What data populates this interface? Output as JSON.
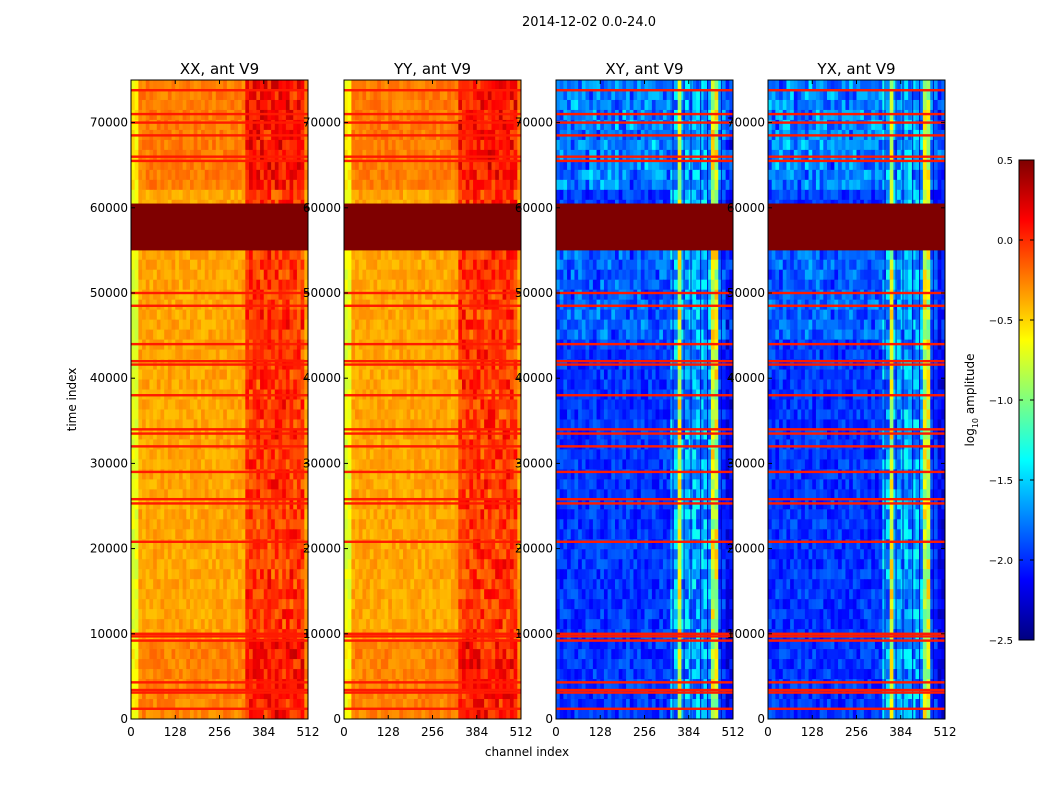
{
  "figure": {
    "suptitle": "2014-12-02 0.0-24.0"
  },
  "colormap": {
    "name": "jet",
    "stops": [
      "#00007f",
      "#0000ff",
      "#007fff",
      "#00ffff",
      "#7fff7f",
      "#ffff00",
      "#ff7f00",
      "#ff0000",
      "#7f0000"
    ]
  },
  "chart_data": [
    {
      "type": "heatmap",
      "title": "XX, ant V9",
      "xlabel": "",
      "ylabel": "time index",
      "xlim": [
        0,
        512
      ],
      "ylim": [
        0,
        75000
      ],
      "xticks": [
        0,
        128,
        256,
        384,
        512
      ],
      "yticks": [
        0,
        10000,
        20000,
        30000,
        40000,
        50000,
        60000,
        70000
      ],
      "profile": "parallel"
    },
    {
      "type": "heatmap",
      "title": "YY, ant V9",
      "xlabel": "channel index",
      "ylabel": "",
      "xlim": [
        0,
        512
      ],
      "ylim": [
        0,
        75000
      ],
      "xticks": [
        0,
        128,
        256,
        384,
        512
      ],
      "yticks": [
        0,
        10000,
        20000,
        30000,
        40000,
        50000,
        60000,
        70000
      ],
      "profile": "parallel"
    },
    {
      "type": "heatmap",
      "title": "XY, ant V9",
      "xlabel": "",
      "ylabel": "",
      "xlim": [
        0,
        512
      ],
      "ylim": [
        0,
        75000
      ],
      "xticks": [
        0,
        128,
        256,
        384,
        512
      ],
      "yticks": [
        0,
        10000,
        20000,
        30000,
        40000,
        50000,
        60000,
        70000
      ],
      "profile": "cross"
    },
    {
      "type": "heatmap",
      "title": "YX, ant V9",
      "xlabel": "",
      "ylabel": "",
      "xlim": [
        0,
        512
      ],
      "ylim": [
        0,
        75000
      ],
      "xticks": [
        0,
        128,
        256,
        384,
        512
      ],
      "yticks": [
        0,
        10000,
        20000,
        30000,
        40000,
        50000,
        60000,
        70000
      ],
      "profile": "cross"
    }
  ],
  "colorbar": {
    "label": "log10 amplitude",
    "label_main": "log",
    "label_sub": "10",
    "label_rest": " amplitude",
    "range": [
      -2.5,
      0.5
    ],
    "ticks": [
      "0.5",
      "0.0",
      "−0.5",
      "−1.0",
      "−1.5",
      "−2.0",
      "−2.5"
    ],
    "tick_values": [
      0.5,
      0.0,
      -0.5,
      -1.0,
      -1.5,
      -2.0,
      -2.5
    ]
  },
  "features": {
    "flagged_band": [
      55000,
      60500
    ],
    "rfi_rows": [
      1200,
      3100,
      3400,
      4300,
      9200,
      9700,
      10000,
      20800,
      25300,
      25800,
      29000,
      32000,
      33500,
      34000,
      38000,
      41600,
      42000,
      44000,
      48500,
      50000,
      65500,
      66000,
      68500,
      70000,
      71000,
      73800
    ],
    "bright_channels": [
      340,
      372,
      392,
      420,
      440,
      480
    ]
  }
}
